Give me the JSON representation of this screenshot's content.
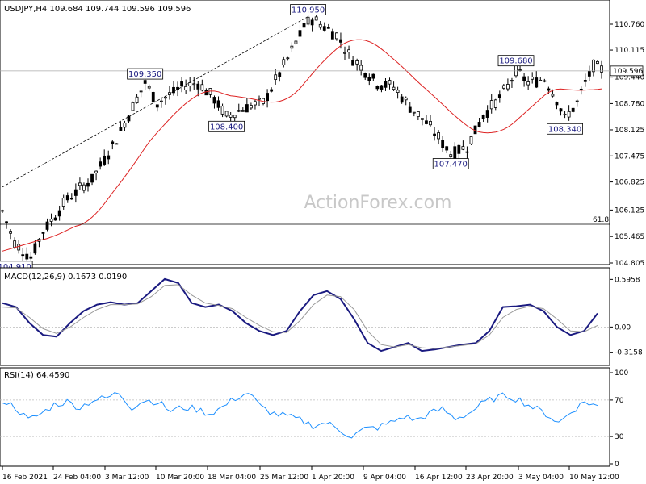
{
  "watermark": "ActionForex.com",
  "chart_data": [
    {
      "type": "candlestick",
      "title": "USDJPY,H4  109.684 109.744 109.596 109.596",
      "ylim": [
        104.6,
        111.2
      ],
      "y_ticks": [
        "110.760",
        "110.115",
        "109.440",
        "108.780",
        "108.125",
        "107.475",
        "106.825",
        "106.125",
        "105.465",
        "104.805"
      ],
      "x_tick_labels": [
        "16 Feb 2021",
        "24 Feb 04:00",
        "3 Mar 12:00",
        "10 Mar 20:00",
        "18 Mar 04:00",
        "25 Mar 12:00",
        "1 Apr 20:00",
        "9 Apr 04:00",
        "16 Apr 12:00",
        "23 Apr 20:00",
        "3 May 04:00",
        "10 May 12:00"
      ],
      "last_price": "109.596",
      "ma_color": "#dd2222",
      "annotations": [
        {
          "text": "104.910",
          "bar": 3,
          "price": 104.91,
          "pos": "below"
        },
        {
          "text": "109.350",
          "bar": 35,
          "price": 109.35,
          "pos": "above"
        },
        {
          "text": "108.400",
          "bar": 55,
          "price": 108.4,
          "pos": "below"
        },
        {
          "text": "110.950",
          "bar": 75,
          "price": 110.95,
          "pos": "above"
        },
        {
          "text": "107.470",
          "bar": 110,
          "price": 107.47,
          "pos": "below"
        },
        {
          "text": "109.680",
          "bar": 126,
          "price": 109.68,
          "pos": "above"
        },
        {
          "text": "108.340",
          "bar": 138,
          "price": 108.34,
          "pos": "below"
        }
      ],
      "fib_level": {
        "label": "61.8",
        "price": 105.8
      },
      "horizontal_line_price": 109.596,
      "trend_line": {
        "from": {
          "bar": 0,
          "price": 106.7
        },
        "to": {
          "bar": 75,
          "price": 110.95
        }
      },
      "path_keypoints": [
        [
          0,
          106.1
        ],
        [
          3,
          105.3
        ],
        [
          7,
          104.95
        ],
        [
          10,
          105.6
        ],
        [
          16,
          106.4
        ],
        [
          22,
          106.9
        ],
        [
          28,
          107.9
        ],
        [
          33,
          108.9
        ],
        [
          35,
          109.3
        ],
        [
          38,
          108.8
        ],
        [
          44,
          109.2
        ],
        [
          48,
          109.3
        ],
        [
          52,
          108.9
        ],
        [
          55,
          108.45
        ],
        [
          60,
          108.7
        ],
        [
          64,
          108.8
        ],
        [
          70,
          109.9
        ],
        [
          74,
          110.7
        ],
        [
          76,
          110.9
        ],
        [
          82,
          110.5
        ],
        [
          85,
          110.0
        ],
        [
          88,
          109.7
        ],
        [
          92,
          109.3
        ],
        [
          96,
          109.2
        ],
        [
          100,
          108.7
        ],
        [
          104,
          108.3
        ],
        [
          108,
          107.8
        ],
        [
          110,
          107.55
        ],
        [
          114,
          107.7
        ],
        [
          118,
          108.5
        ],
        [
          121,
          108.8
        ],
        [
          124,
          109.2
        ],
        [
          126,
          109.6
        ],
        [
          129,
          109.3
        ],
        [
          133,
          109.4
        ],
        [
          136,
          108.9
        ],
        [
          138,
          108.4
        ],
        [
          141,
          108.8
        ],
        [
          143,
          109.3
        ],
        [
          145,
          109.7
        ],
        [
          147,
          109.62
        ]
      ]
    },
    {
      "type": "line",
      "title": "MACD(12,26,9) 0.1673 0.0190",
      "ylim": [
        -0.4,
        0.66
      ],
      "y_ticks": [
        "0.5958",
        "0.00",
        "-0.3158"
      ],
      "series": [
        {
          "name": "MACD",
          "color": "#1a1a80",
          "values": [
            0.3,
            0.25,
            0.05,
            -0.1,
            -0.12,
            0.05,
            0.2,
            0.28,
            0.31,
            0.28,
            0.3,
            0.45,
            0.6,
            0.55,
            0.3,
            0.25,
            0.28,
            0.2,
            0.05,
            -0.05,
            -0.1,
            -0.05,
            0.2,
            0.4,
            0.45,
            0.35,
            0.1,
            -0.2,
            -0.3,
            -0.25,
            -0.2,
            -0.3,
            -0.28,
            -0.25,
            -0.22,
            -0.2,
            -0.05,
            0.25,
            0.26,
            0.28,
            0.2,
            0.0,
            -0.1,
            -0.05,
            0.17
          ]
        },
        {
          "name": "Signal",
          "color": "#999999",
          "values": [
            0.25,
            0.24,
            0.12,
            -0.02,
            -0.08,
            0.0,
            0.12,
            0.22,
            0.28,
            0.28,
            0.29,
            0.38,
            0.52,
            0.53,
            0.4,
            0.3,
            0.27,
            0.23,
            0.12,
            0.02,
            -0.06,
            -0.07,
            0.08,
            0.28,
            0.4,
            0.38,
            0.22,
            -0.05,
            -0.22,
            -0.25,
            -0.22,
            -0.26,
            -0.27,
            -0.25,
            -0.23,
            -0.21,
            -0.1,
            0.12,
            0.22,
            0.26,
            0.23,
            0.1,
            -0.05,
            -0.06,
            0.02
          ]
        }
      ]
    },
    {
      "type": "line",
      "title": "RSI(14) 64.4590",
      "ylim": [
        0,
        100
      ],
      "y_ticks": [
        "100",
        "70",
        "30",
        "0"
      ],
      "levels": [
        70,
        30
      ],
      "series": [
        {
          "name": "RSI",
          "color": "#1e90ff",
          "values": [
            70,
            62,
            48,
            55,
            65,
            68,
            62,
            70,
            72,
            78,
            62,
            70,
            68,
            58,
            62,
            60,
            55,
            62,
            72,
            78,
            62,
            55,
            52,
            48,
            42,
            45,
            38,
            30,
            38,
            40,
            45,
            52,
            48,
            55,
            60,
            50,
            55,
            65,
            72,
            75,
            70,
            62,
            55,
            45,
            58,
            68,
            64
          ]
        }
      ]
    }
  ]
}
